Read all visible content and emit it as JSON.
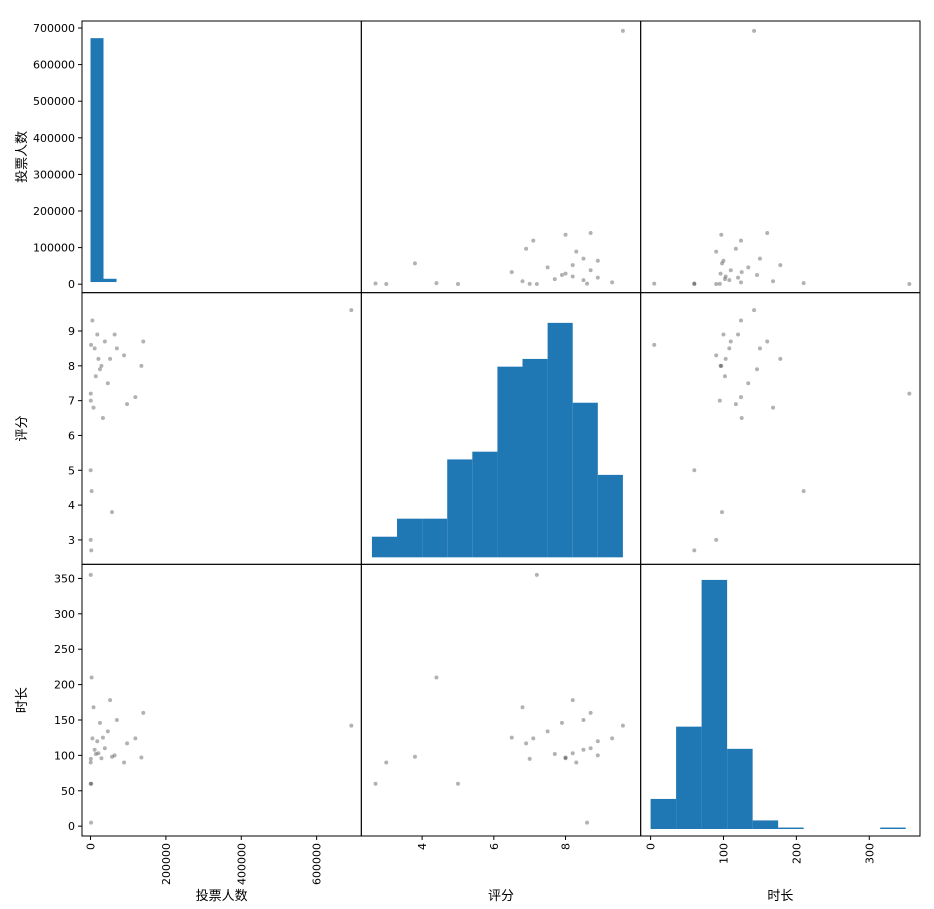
{
  "chart_data": {
    "type": "scatter_matrix",
    "variables": [
      "投票人数",
      "评分",
      "时长"
    ],
    "colors": {
      "hist": "#1f77b4",
      "scatter": "#000000",
      "frame": "#000000"
    },
    "scatter_alpha": 0.3,
    "axes": {
      "投票人数": {
        "range": [
          -4000,
          700000
        ],
        "x_ticks": [
          0,
          200000,
          400000,
          600000
        ],
        "x_tick_labels": [
          "0",
          "200000",
          "400000",
          "600000"
        ],
        "y_ticks": [
          0,
          100000,
          200000,
          300000,
          400000,
          500000,
          600000,
          700000
        ],
        "y_tick_labels": [
          "0",
          "100000",
          "200000",
          "300000",
          "400000",
          "500000",
          "600000",
          "700000"
        ]
      },
      "评分": {
        "range": [
          2.5,
          9.9
        ],
        "x_ticks": [
          4,
          6,
          8
        ],
        "x_tick_labels": [
          "4",
          "6",
          "8"
        ],
        "y_ticks": [
          3,
          4,
          5,
          6,
          7,
          8,
          9
        ],
        "y_tick_labels": [
          "3",
          "4",
          "5",
          "6",
          "7",
          "8",
          "9"
        ]
      },
      "时长": {
        "range": [
          -4,
          360
        ],
        "x_ticks": [
          0,
          100,
          200,
          300
        ],
        "x_tick_labels": [
          "0",
          "100",
          "200",
          "300"
        ],
        "y_ticks": [
          0,
          50,
          100,
          150,
          200,
          250,
          300,
          350
        ],
        "y_tick_labels": [
          "0",
          "50",
          "100",
          "150",
          "200",
          "250",
          "300",
          "350"
        ]
      }
    },
    "histograms": {
      "投票人数": {
        "bin_edges": [
          0,
          34500,
          69000,
          103500,
          138000,
          172500,
          207000,
          241500,
          276000,
          310500,
          345000,
          379500,
          414000,
          448500,
          483000,
          517500,
          552000,
          586500,
          621000,
          655500,
          690000
        ],
        "counts": [
          672000,
          9000,
          0,
          0,
          0,
          0,
          0,
          0,
          0,
          0,
          0,
          0,
          0,
          0,
          0,
          0,
          0,
          0,
          0,
          0
        ],
        "count_range": [
          -10000,
          700000
        ]
      },
      "评分": {
        "bin_edges": [
          2.6,
          3.3,
          4.0,
          4.7,
          5.4,
          6.1,
          6.8,
          7.5,
          8.2,
          8.9,
          9.6
        ],
        "counts": [
          0.8,
          1.5,
          1.5,
          3.8,
          4.1,
          7.4,
          7.7,
          9.1,
          6.0,
          3.2
        ],
        "count_range": [
          0,
          10
        ]
      },
      "时长": {
        "bin_edges": [
          0,
          35,
          70,
          105,
          140,
          175,
          210,
          245,
          280,
          315,
          350
        ],
        "counts": [
          42,
          143,
          348,
          112,
          12,
          2,
          0,
          0,
          0,
          2
        ],
        "count_range": [
          0,
          360
        ]
      }
    },
    "points": [
      {
        "投票人数": 692000,
        "评分": 9.6,
        "时长": 142
      },
      {
        "投票人数": 140000,
        "评分": 8.7,
        "时长": 160
      },
      {
        "投票人数": 135000,
        "评分": 8.0,
        "时长": 97
      },
      {
        "投票人数": 119000,
        "评分": 7.1,
        "时长": 124
      },
      {
        "投票人数": 97000,
        "评分": 6.9,
        "时长": 117
      },
      {
        "投票人数": 89000,
        "评分": 8.3,
        "时长": 90
      },
      {
        "投票人数": 70000,
        "评分": 8.5,
        "时长": 150
      },
      {
        "投票人数": 64000,
        "评分": 8.9,
        "时长": 100
      },
      {
        "投票人数": 57000,
        "评分": 3.8,
        "时长": 98
      },
      {
        "投票人数": 52000,
        "评分": 8.2,
        "时长": 178
      },
      {
        "投票人数": 46000,
        "评分": 7.5,
        "时长": 134
      },
      {
        "投票人数": 38000,
        "评分": 8.7,
        "时长": 110
      },
      {
        "投票人数": 33000,
        "评分": 6.5,
        "时长": 125
      },
      {
        "投票人数": 29000,
        "评分": 8.0,
        "时长": 96
      },
      {
        "投票人数": 25000,
        "评分": 7.9,
        "时长": 146
      },
      {
        "投票人数": 21000,
        "评分": 8.2,
        "时长": 103
      },
      {
        "投票人数": 18000,
        "评分": 8.9,
        "时长": 120
      },
      {
        "投票人数": 14000,
        "评分": 7.7,
        "时长": 102
      },
      {
        "投票人数": 11000,
        "评分": 8.5,
        "时长": 108
      },
      {
        "投票人数": 8000,
        "评分": 6.8,
        "时长": 168
      },
      {
        "投票人数": 5000,
        "评分": 9.3,
        "时长": 124
      },
      {
        "投票人数": 3000,
        "评分": 4.4,
        "时长": 210
      },
      {
        "投票人数": 2000,
        "评分": 2.7,
        "时长": 60
      },
      {
        "投票人数": 1500,
        "评分": 8.6,
        "时长": 5
      },
      {
        "投票人数": 800,
        "评分": 7.0,
        "时长": 95
      },
      {
        "投票人数": 600,
        "评分": 7.2,
        "时长": 355
      },
      {
        "投票人数": 500,
        "评分": 3.0,
        "时长": 90
      },
      {
        "投票人数": 400,
        "评分": 5.0,
        "时长": 60
      }
    ]
  }
}
